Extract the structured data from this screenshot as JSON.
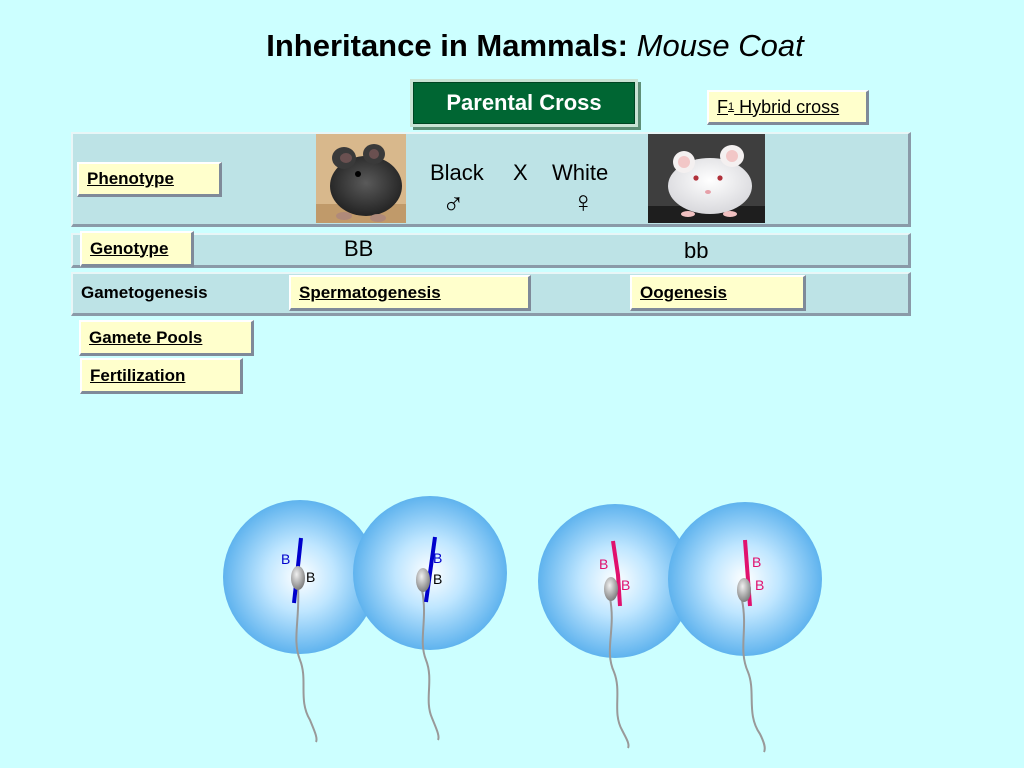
{
  "title": {
    "main": "Inheritance in Mammals:",
    "sub": "Mouse Coat"
  },
  "buttons": {
    "parental_cross": "Parental Cross",
    "f1_prefix": "F",
    "f1_sub": "1",
    "f1_suffix": " Hybrid cross"
  },
  "phenotype": {
    "label": "Phenotype",
    "left": "Black",
    "cross": "X",
    "right": "White",
    "male_symbol": "♂",
    "female_symbol": "♀"
  },
  "genotype": {
    "label": "Genotype",
    "male": "BB",
    "female": "bb"
  },
  "gametogenesis": {
    "label": "Gametogenesis",
    "sperm_button": "Spermatogenesis",
    "oo_button": "Oogenesis"
  },
  "side_buttons": {
    "gamete_pools": "Gamete Pools",
    "fertilization": "Fertilization"
  },
  "cells": [
    {
      "top_allele": "B",
      "bottom_allele": "B",
      "chromosome_color": "#0000cc"
    },
    {
      "top_allele": "B",
      "bottom_allele": "B",
      "chromosome_color": "#0000cc"
    },
    {
      "top_allele": "B",
      "bottom_allele": "B",
      "chromosome_color": "#e0116e"
    },
    {
      "top_allele": "B",
      "bottom_allele": "B",
      "chromosome_color": "#e0116e"
    }
  ],
  "colors": {
    "background": "#ccffff",
    "parental_green": "#006633",
    "button_yellow": "#ffffcc",
    "row_blue": "#bde3e6"
  }
}
